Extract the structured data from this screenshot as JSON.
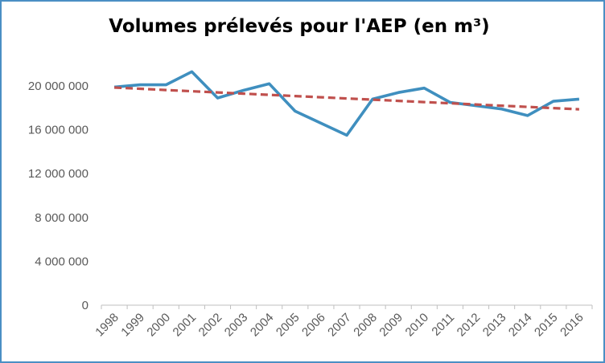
{
  "chart_data": {
    "type": "line",
    "title": "Volumes prélevés pour l'AEP (en m³)",
    "categories": [
      "1998",
      "1999",
      "2000",
      "2001",
      "2002",
      "2003",
      "2004",
      "2005",
      "2006",
      "2007",
      "2008",
      "2009",
      "2010",
      "2011",
      "2012",
      "2013",
      "2014",
      "2015",
      "2016"
    ],
    "series": [
      {
        "values": [
          19900000,
          20100000,
          20100000,
          21300000,
          18900000,
          19600000,
          20200000,
          17700000,
          16600000,
          15500000,
          18800000,
          19400000,
          19800000,
          18500000,
          18200000,
          17900000,
          17300000,
          18600000,
          18800000
        ],
        "color": "#3f8fbf",
        "style": "solid"
      },
      {
        "values": [
          19850000,
          19740000,
          19630000,
          19520000,
          19410000,
          19300000,
          19190000,
          19080000,
          18970000,
          18860000,
          18750000,
          18640000,
          18530000,
          18420000,
          18310000,
          18200000,
          18090000,
          17980000,
          17870000
        ],
        "color": "#c0504d",
        "style": "dashed"
      }
    ],
    "yticks": [
      "20 000 000",
      "16 000 000",
      "12 000 000",
      "8 000 000",
      "4 000 000",
      "0"
    ],
    "ytick_values": [
      20000000,
      16000000,
      12000000,
      8000000,
      4000000,
      0
    ],
    "ylim": [
      0,
      20000000
    ],
    "grid": false,
    "legend": "none"
  }
}
